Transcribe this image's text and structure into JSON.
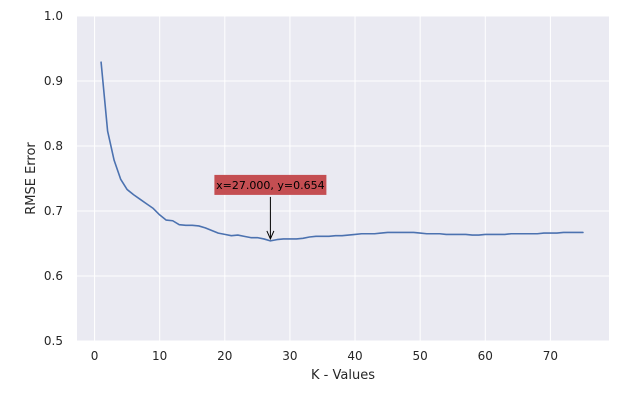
{
  "chart_data": {
    "type": "line",
    "title": "",
    "xlabel": "K - Values",
    "ylabel": "RMSE Error",
    "xlim": [
      -2.7,
      79
    ],
    "ylim": [
      0.5,
      1.0
    ],
    "x_ticks": [
      0,
      10,
      20,
      30,
      40,
      50,
      60,
      70
    ],
    "x_tick_labels": [
      "0",
      "10",
      "20",
      "30",
      "40",
      "50",
      "60",
      "70"
    ],
    "y_ticks": [
      0.5,
      0.6,
      0.7,
      0.8,
      0.9,
      1.0
    ],
    "y_tick_labels": [
      "0.5",
      "0.6",
      "0.7",
      "0.8",
      "0.9",
      "1.0"
    ],
    "grid": true,
    "background_color": "#eaeaf2",
    "grid_color": "#ffffff",
    "line_color": "#4c72b0",
    "annotation_box_color": "#c44e52",
    "series": [
      {
        "x": [
          1,
          2,
          3,
          4,
          5,
          6,
          7,
          8,
          9,
          10,
          11,
          12,
          13,
          14,
          15,
          16,
          17,
          18,
          19,
          20,
          21,
          22,
          23,
          24,
          25,
          26,
          27,
          28,
          29,
          30,
          31,
          32,
          33,
          34,
          35,
          36,
          37,
          38,
          39,
          40,
          41,
          42,
          43,
          44,
          45,
          46,
          47,
          48,
          49,
          50,
          51,
          52,
          53,
          54,
          55,
          56,
          57,
          58,
          59,
          60,
          61,
          62,
          63,
          64,
          65,
          66,
          67,
          68,
          69,
          70,
          71,
          72,
          73,
          74,
          75
        ],
        "y": [
          0.929,
          0.823,
          0.778,
          0.749,
          0.733,
          0.725,
          0.718,
          0.711,
          0.704,
          0.694,
          0.686,
          0.685,
          0.679,
          0.678,
          0.678,
          0.677,
          0.674,
          0.67,
          0.666,
          0.664,
          0.662,
          0.663,
          0.661,
          0.659,
          0.659,
          0.657,
          0.654,
          0.656,
          0.657,
          0.657,
          0.657,
          0.658,
          0.66,
          0.661,
          0.661,
          0.661,
          0.662,
          0.662,
          0.663,
          0.664,
          0.665,
          0.665,
          0.665,
          0.666,
          0.667,
          0.667,
          0.667,
          0.667,
          0.667,
          0.666,
          0.665,
          0.665,
          0.665,
          0.664,
          0.664,
          0.664,
          0.664,
          0.663,
          0.663,
          0.664,
          0.664,
          0.664,
          0.664,
          0.665,
          0.665,
          0.665,
          0.665,
          0.665,
          0.666,
          0.666,
          0.666,
          0.667,
          0.667,
          0.667,
          0.667
        ]
      }
    ],
    "annotations": [
      {
        "text": "x=27.000, y=0.654",
        "target_x": 27,
        "target_y": 0.654
      }
    ]
  }
}
